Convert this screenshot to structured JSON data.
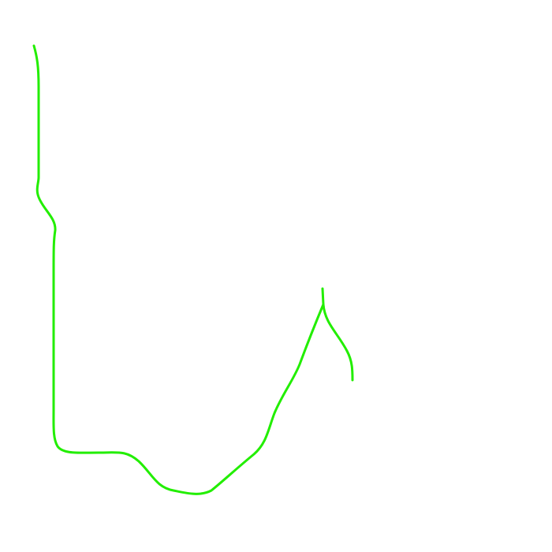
{
  "drawing": {
    "stroke_color": "#22ee00",
    "background_color": "#ffffff"
  }
}
